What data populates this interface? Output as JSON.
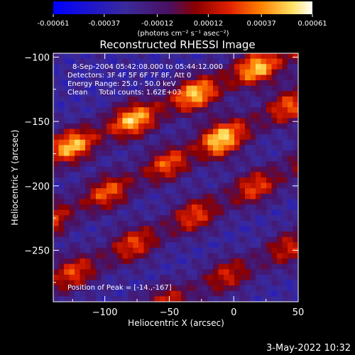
{
  "colorbar": {
    "tick_labels": [
      "-0.00061",
      "-0.00037",
      "-0.00012",
      "0.00012",
      "0.00037",
      "0.00061"
    ],
    "tick_values": [
      -0.00061,
      -0.00037,
      -0.00012,
      0.00012,
      0.00037,
      0.00061
    ],
    "unit_label": "(photons cm⁻² s⁻¹ asec⁻²)",
    "range": [
      -0.00061,
      0.00061
    ]
  },
  "chart_data": {
    "type": "heatmap",
    "title": "Reconstructed RHESSI Image",
    "xlabel": "Heliocentric X (arcsec)",
    "ylabel": "Heliocentric Y (arcsec)",
    "xlim": [
      -140,
      50
    ],
    "ylim": [
      -290,
      -97
    ],
    "x_ticks": [
      -100,
      -50,
      0,
      50
    ],
    "y_ticks": [
      -100,
      -150,
      -200,
      -250
    ],
    "x_tick_labels": [
      "−100",
      "−50",
      "0",
      "50"
    ],
    "y_tick_labels": [
      "−100",
      "−150",
      "−200",
      "−250"
    ],
    "annotations": [
      "8-Sep-2004 05:42:08.000 to 05:44:12.000",
      "Detectors: 3F 4F 5F 6F 7F 8F, Att 0",
      "Energy Range: 25.0 - 50.0 keV",
      "Clean     Total counts: 1.62E+03"
    ],
    "peak_text": "Position of Peak = [-14.,-167]",
    "peak": {
      "x": -14,
      "y": -167
    },
    "ridges": [
      {
        "x0": -140,
        "y0": -175,
        "x1": 50,
        "y1": -95,
        "amp": 1.0
      },
      {
        "x0": -140,
        "y0": -225,
        "x1": 50,
        "y1": -135,
        "amp": 0.75
      },
      {
        "x0": -140,
        "y0": -275,
        "x1": 50,
        "y1": -185,
        "amp": 0.7
      },
      {
        "x0": -140,
        "y0": -330,
        "x1": 50,
        "y1": -245,
        "amp": 0.6
      }
    ]
  },
  "footer": {
    "timestamp": "3-May-2022 10:32"
  }
}
